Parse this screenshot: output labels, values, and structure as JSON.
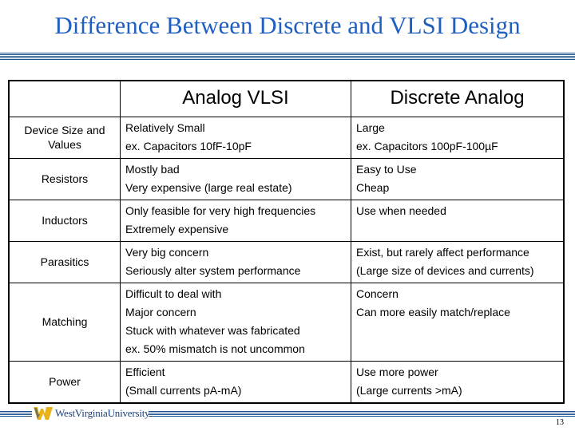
{
  "slide": {
    "title": "Difference Between Discrete and VLSI Design",
    "page_number": "13",
    "logo_text": "WestVirginiaUniversity."
  },
  "table": {
    "header": [
      "",
      "Analog VLSI",
      "Discrete Analog"
    ],
    "rows": [
      {
        "label": "Device Size and Values",
        "vlsi": [
          "Relatively Small",
          "ex. Capacitors 10fF-10pF"
        ],
        "discrete": [
          "Large",
          "ex. Capacitors 100pF-100µF"
        ]
      },
      {
        "label": "Resistors",
        "vlsi": [
          "Mostly bad",
          "Very expensive (large real estate)"
        ],
        "discrete": [
          "Easy to Use",
          "Cheap"
        ]
      },
      {
        "label": "Inductors",
        "vlsi": [
          "Only feasible for very high frequencies",
          "Extremely expensive"
        ],
        "discrete": [
          "Use when needed"
        ]
      },
      {
        "label": "Parasitics",
        "vlsi": [
          "Very big concern",
          "Seriously alter system performance"
        ],
        "discrete": [
          "Exist, but rarely affect performance",
          "(Large size of devices and currents)"
        ]
      },
      {
        "label": "Matching",
        "vlsi": [
          "Difficult to deal with",
          "Major concern",
          "Stuck with whatever was fabricated",
          "ex. 50% mismatch is not uncommon"
        ],
        "discrete": [
          "Concern",
          "Can more easily match/replace"
        ]
      },
      {
        "label": "Power",
        "vlsi": [
          "Efficient",
          "(Small currents pA-mA)"
        ],
        "discrete": [
          "Use more power",
          "(Large currents >mA)"
        ]
      }
    ]
  },
  "colors": {
    "title": "#1f5fc0",
    "band": "#1b4f8f",
    "logo_gold": "#e8b31a",
    "logo_blue": "#1b3f7a"
  }
}
